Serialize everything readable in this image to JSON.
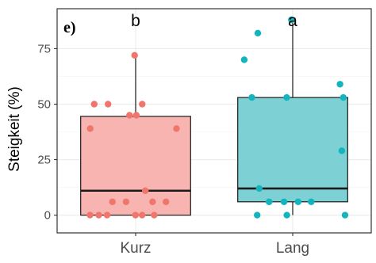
{
  "chart_data": {
    "type": "boxplot",
    "panel_label": "e)",
    "xlabel": "",
    "ylabel": "Steigkeit (%)",
    "ylim": [
      -8,
      93
    ],
    "yticks": [
      0,
      25,
      50,
      75
    ],
    "ytick_labels": [
      "0",
      "25",
      "50",
      "75"
    ],
    "grid": true,
    "categories": [
      "Kurz",
      "Lang"
    ],
    "significance_labels": [
      "b",
      "a"
    ],
    "colors": {
      "Kurz": {
        "fill": "#f8b4b0",
        "points": "#f0766d"
      },
      "Lang": {
        "fill": "#7dd0d4",
        "points": "#12b5bd"
      }
    },
    "boxes": [
      {
        "category": "Kurz",
        "min": 0,
        "q1": 0,
        "median": 11,
        "q3": 44.5,
        "max": 72
      },
      {
        "category": "Lang",
        "min": 0,
        "q1": 6,
        "median": 12,
        "q3": 53,
        "max": 88
      }
    ],
    "points": [
      {
        "category": "Kurz",
        "values": [
          72,
          50,
          50,
          50,
          45,
          45,
          39,
          39,
          11,
          6,
          6,
          6,
          6,
          0,
          0,
          0,
          0,
          0,
          0
        ]
      },
      {
        "category": "Lang",
        "values": [
          88,
          82,
          70,
          59,
          53,
          53,
          53,
          29,
          12,
          6,
          6,
          6,
          6,
          0,
          0,
          0
        ]
      }
    ]
  }
}
